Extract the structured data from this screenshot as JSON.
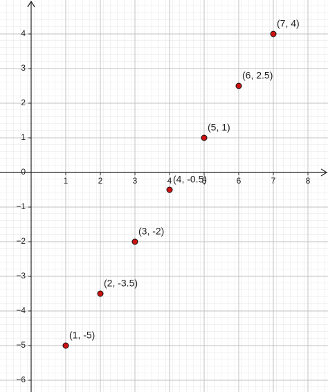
{
  "chart_data": {
    "type": "scatter",
    "x": [
      1,
      2,
      3,
      4,
      5,
      6,
      7
    ],
    "series": [
      {
        "color": "#cc1111",
        "values": [
          -5,
          -3.5,
          -2,
          -0.5,
          1,
          2.5,
          4
        ],
        "value_labels": [
          "(1, -5)",
          "(2, -3.5)",
          "(3, -2)",
          "(4, -0.5)",
          "(5, 1)",
          "(6, 2.5)",
          "(7, 4)"
        ]
      }
    ],
    "xlim": [
      -0.9,
      8.58
    ],
    "ylim": [
      -6.34,
      4.98
    ],
    "xticks": [
      1,
      2,
      3,
      4,
      5,
      6,
      7,
      8
    ],
    "yticks": [
      {
        "value": -6,
        "label": "−6"
      },
      {
        "value": -5,
        "label": "−5"
      },
      {
        "value": -4,
        "label": "−4"
      },
      {
        "value": -3,
        "label": "−3"
      },
      {
        "value": -2,
        "label": "−2"
      },
      {
        "value": -1,
        "label": "−1"
      },
      0,
      1,
      2,
      3,
      4
    ],
    "grid": true
  }
}
